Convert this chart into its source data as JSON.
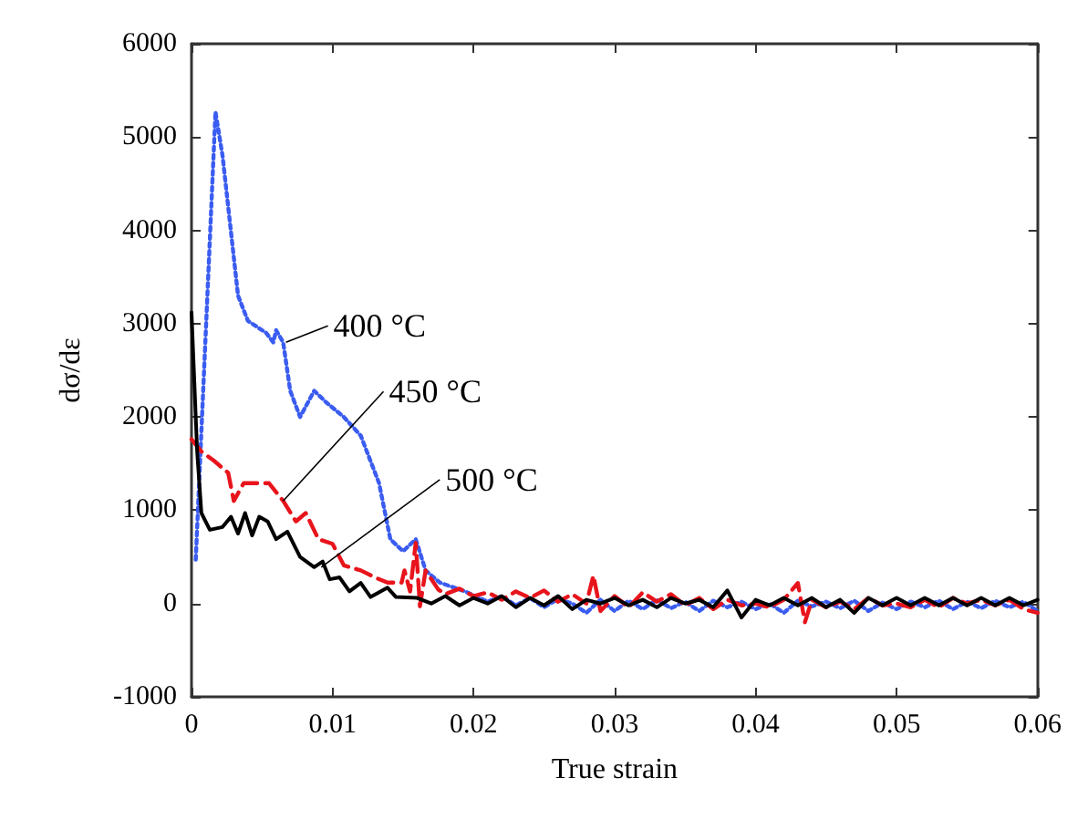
{
  "chart_data": {
    "type": "line",
    "xlabel": "True strain",
    "ylabel": "dσ/dε",
    "xlim": [
      0,
      0.06
    ],
    "xticks": [
      0,
      0.01,
      0.02,
      0.03,
      0.04,
      0.05,
      0.06
    ],
    "ylim": [
      -1000,
      6000
    ],
    "yticks": [
      -1000,
      0,
      1000,
      2000,
      3000,
      4000,
      5000,
      6000
    ],
    "grid": false,
    "marker": "none",
    "series": [
      {
        "color": "#3a5cf0",
        "line_style": "dotted",
        "x": [
          0.0003,
          0.0017,
          0.0022,
          0.0033,
          0.004,
          0.0053,
          0.0058,
          0.006,
          0.0065,
          0.007,
          0.0077,
          0.0087,
          0.0096,
          0.0108,
          0.012,
          0.0133,
          0.0141,
          0.015,
          0.0159,
          0.0166,
          0.0176,
          0.0194,
          0.021,
          0.022,
          0.023,
          0.024,
          0.025,
          0.026,
          0.027,
          0.028,
          0.029,
          0.03,
          0.031,
          0.032,
          0.033,
          0.034,
          0.035,
          0.036,
          0.037,
          0.038,
          0.039,
          0.04,
          0.041,
          0.042,
          0.043,
          0.044,
          0.045,
          0.046,
          0.047,
          0.048,
          0.049,
          0.05,
          0.051,
          0.052,
          0.053,
          0.054,
          0.055,
          0.056,
          0.057,
          0.058,
          0.059,
          0.06
        ],
        "values": [
          470,
          5270,
          4800,
          3300,
          3030,
          2900,
          2800,
          2930,
          2800,
          2280,
          2000,
          2280,
          2150,
          2000,
          1800,
          1290,
          690,
          560,
          690,
          355,
          225,
          130,
          20,
          80,
          -20,
          60,
          -40,
          50,
          0,
          -100,
          40,
          -80,
          30,
          -60,
          40,
          -50,
          20,
          -80,
          30,
          -40,
          20,
          -60,
          0,
          -100,
          30,
          -30,
          20,
          -50,
          30,
          -80,
          10,
          -60,
          20,
          -40,
          30,
          -60,
          20,
          -50,
          30,
          -40,
          20,
          -80
        ]
      },
      {
        "color": "#e8141c",
        "line_style": "dashed",
        "x": [
          0,
          0.0007,
          0.0016,
          0.0026,
          0.003,
          0.0037,
          0.0047,
          0.0055,
          0.0065,
          0.0074,
          0.0081,
          0.009,
          0.01,
          0.0108,
          0.012,
          0.013,
          0.0139,
          0.0149,
          0.0151,
          0.0155,
          0.0159,
          0.0162,
          0.0166,
          0.0175,
          0.018,
          0.019,
          0.02,
          0.021,
          0.022,
          0.023,
          0.024,
          0.025,
          0.026,
          0.027,
          0.028,
          0.0285,
          0.029,
          0.03,
          0.031,
          0.032,
          0.033,
          0.034,
          0.035,
          0.036,
          0.037,
          0.038,
          0.039,
          0.04,
          0.041,
          0.042,
          0.043,
          0.0435,
          0.044,
          0.045,
          0.046,
          0.047,
          0.048,
          0.049,
          0.05,
          0.051,
          0.052,
          0.053,
          0.054,
          0.055,
          0.056,
          0.057,
          0.058,
          0.059,
          0.06
        ],
        "values": [
          1760,
          1630,
          1530,
          1400,
          1100,
          1290,
          1290,
          1290,
          1100,
          880,
          970,
          690,
          640,
          410,
          355,
          280,
          225,
          225,
          355,
          130,
          650,
          -30,
          355,
          150,
          100,
          160,
          80,
          120,
          40,
          130,
          60,
          140,
          20,
          100,
          0,
          300,
          -80,
          80,
          -40,
          120,
          20,
          100,
          -20,
          60,
          -60,
          40,
          -20,
          0,
          -40,
          40,
          220,
          -200,
          40,
          -40,
          20,
          -60,
          60,
          -20,
          0,
          -40,
          40,
          -40,
          60,
          0,
          40,
          -20,
          40,
          -60,
          -100
        ]
      },
      {
        "color": "#000000",
        "line_style": "solid",
        "x": [
          0,
          0.0004,
          0.0007,
          0.0013,
          0.0022,
          0.0028,
          0.0033,
          0.0038,
          0.0043,
          0.0048,
          0.0054,
          0.006,
          0.0068,
          0.0077,
          0.0087,
          0.0093,
          0.0098,
          0.0105,
          0.0112,
          0.012,
          0.0127,
          0.0139,
          0.0145,
          0.016,
          0.017,
          0.018,
          0.019,
          0.02,
          0.021,
          0.022,
          0.023,
          0.024,
          0.025,
          0.026,
          0.027,
          0.028,
          0.029,
          0.03,
          0.031,
          0.032,
          0.033,
          0.034,
          0.035,
          0.036,
          0.037,
          0.038,
          0.039,
          0.04,
          0.041,
          0.042,
          0.043,
          0.044,
          0.045,
          0.046,
          0.047,
          0.048,
          0.049,
          0.05,
          0.051,
          0.052,
          0.053,
          0.054,
          0.055,
          0.056,
          0.057,
          0.058,
          0.059,
          0.06
        ],
        "values": [
          3120,
          1630,
          970,
          790,
          820,
          930,
          750,
          970,
          730,
          930,
          880,
          690,
          770,
          500,
          390,
          450,
          260,
          280,
          130,
          220,
          70,
          170,
          70,
          60,
          0,
          80,
          -20,
          60,
          0,
          80,
          -40,
          60,
          -20,
          80,
          -60,
          40,
          0,
          60,
          -20,
          40,
          -40,
          60,
          0,
          40,
          -40,
          140,
          -150,
          40,
          -20,
          60,
          -20,
          60,
          -40,
          40,
          -100,
          60,
          -20,
          60,
          -20,
          60,
          -20,
          60,
          -20,
          60,
          -20,
          60,
          -20,
          40
        ]
      }
    ],
    "annotations": [
      {
        "text": "400 °C",
        "x": 0.0067,
        "y": 2800
      },
      {
        "text": "450 °C",
        "x": 0.0065,
        "y": 1100
      },
      {
        "text": "500 °C",
        "x": 0.0092,
        "y": 390
      }
    ]
  }
}
